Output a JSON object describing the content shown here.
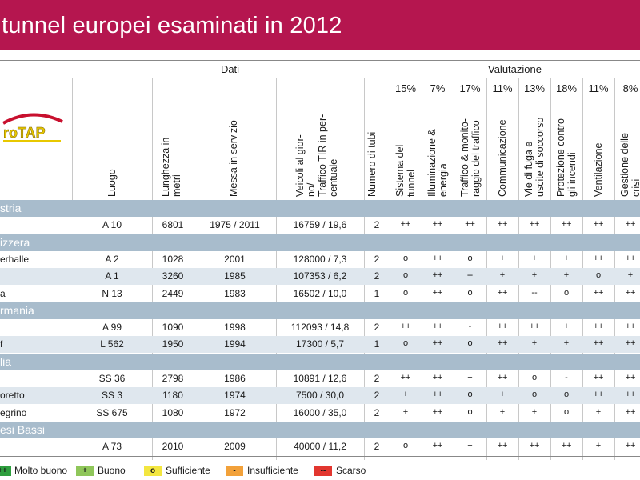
{
  "header": {
    "title": "tunnel europei esaminati in 2012"
  },
  "logo": {
    "text": "roTAP"
  },
  "groups": {
    "dati": "Dati",
    "valutazione": "Valutazione"
  },
  "columns": {
    "luogo": "Luogo",
    "lunghezza": [
      "Lunghezza in",
      "metri"
    ],
    "messa": "Messa in servizio",
    "veicoli": [
      "Veicoli al gior-",
      "no/",
      "Traffico TIR in per-",
      "centuale"
    ],
    "tubi": "Numero di tubi"
  },
  "criteria": [
    {
      "pct": "15%",
      "label": [
        "Sistema del",
        "tunnel"
      ]
    },
    {
      "pct": "7%",
      "label": [
        "Illuminazione &",
        "energia"
      ]
    },
    {
      "pct": "17%",
      "label": [
        "Traffico & monito-",
        "raggio del traffico"
      ]
    },
    {
      "pct": "11%",
      "label": [
        "Communicazione"
      ]
    },
    {
      "pct": "13%",
      "label": [
        "Vie di fuga e",
        "uscite di soccorso"
      ]
    },
    {
      "pct": "18%",
      "label": [
        "Protezione contro",
        "gli incendi"
      ]
    },
    {
      "pct": "11%",
      "label": [
        "Ventilazione"
      ]
    },
    {
      "pct": "8%",
      "label": [
        "Gestione delle",
        "crisi"
      ]
    }
  ],
  "countries": [
    {
      "name": "stria",
      "rows": [
        {
          "name": "",
          "road": "A 10",
          "length": "6801",
          "year": "1975 / 2011",
          "traffic": "16759 / 19,6",
          "tubes": "2",
          "ratings": [
            "++",
            "++",
            "++",
            "++",
            "++",
            "++",
            "++",
            "++"
          ]
        }
      ]
    },
    {
      "name": "izzera",
      "rows": [
        {
          "name": "erhalle",
          "road": "A 2",
          "length": "1028",
          "year": "2001",
          "traffic": "128000 / 7,3",
          "tubes": "2",
          "ratings": [
            "o",
            "++",
            "o",
            "+",
            "+",
            "+",
            "++",
            "++"
          ]
        },
        {
          "name": "",
          "road": "A 1",
          "length": "3260",
          "year": "1985",
          "traffic": "107353 / 6,2",
          "tubes": "2",
          "ratings": [
            "o",
            "++",
            "--",
            "+",
            "+",
            "+",
            "o",
            "+"
          ]
        },
        {
          "name": "a",
          "road": "N 13",
          "length": "2449",
          "year": "1983",
          "traffic": "16502 / 10,0",
          "tubes": "1",
          "ratings": [
            "o",
            "++",
            "o",
            "++",
            "--",
            "o",
            "++",
            "++"
          ]
        }
      ]
    },
    {
      "name": "rmania",
      "rows": [
        {
          "name": "",
          "road": "A 99",
          "length": "1090",
          "year": "1998",
          "traffic": "112093 / 14,8",
          "tubes": "2",
          "ratings": [
            "++",
            "++",
            "-",
            "++",
            "++",
            "+",
            "++",
            "++"
          ]
        },
        {
          "name": "f",
          "road": "L 562",
          "length": "1950",
          "year": "1994",
          "traffic": "17300 / 5,7",
          "tubes": "1",
          "ratings": [
            "o",
            "++",
            "o",
            "++",
            "+",
            "+",
            "++",
            "++"
          ]
        }
      ]
    },
    {
      "name": "lia",
      "rows": [
        {
          "name": "",
          "road": "SS 36",
          "length": "2798",
          "year": "1986",
          "traffic": "10891 / 12,6",
          "tubes": "2",
          "ratings": [
            "++",
            "++",
            "+",
            "++",
            "o",
            "-",
            "++",
            "++"
          ]
        },
        {
          "name": "oretto",
          "road": "SS 3",
          "length": "1180",
          "year": "1974",
          "traffic": "7500 / 30,0",
          "tubes": "2",
          "ratings": [
            "+",
            "++",
            "o",
            "+",
            "o",
            "o",
            "++",
            "++"
          ]
        },
        {
          "name": "egrino",
          "road": "SS 675",
          "length": "1080",
          "year": "1972",
          "traffic": "16000 / 35,0",
          "tubes": "2",
          "ratings": [
            "+",
            "++",
            "o",
            "+",
            "+",
            "o",
            "+",
            "++"
          ]
        }
      ]
    },
    {
      "name": "esi Bassi",
      "rows": [
        {
          "name": "",
          "road": "A 73",
          "length": "2010",
          "year": "2009",
          "traffic": "40000 / 11,2",
          "tubes": "2",
          "ratings": [
            "o",
            "++",
            "+",
            "++",
            "++",
            "++",
            "+",
            "++"
          ]
        }
      ]
    }
  ],
  "legend": [
    {
      "symbol": "++",
      "label": "Molto buono",
      "color": "#2e9e3e"
    },
    {
      "symbol": "+",
      "label": "Buono",
      "color": "#8fc65a"
    },
    {
      "symbol": "o",
      "label": "Sufficiente",
      "color": "#f3e640"
    },
    {
      "symbol": "-",
      "label": "Insufficiente",
      "color": "#f2a13a"
    },
    {
      "symbol": "--",
      "label": "Scarso",
      "color": "#e2362f"
    }
  ]
}
